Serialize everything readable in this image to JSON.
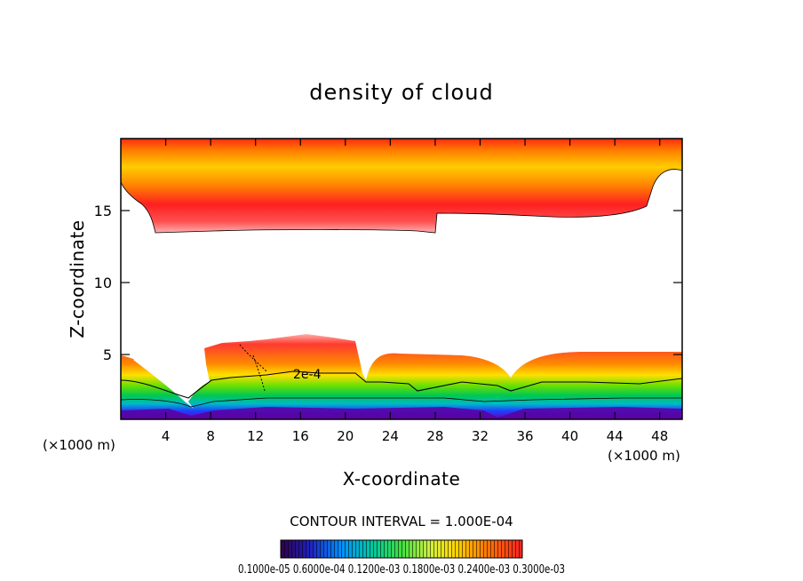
{
  "chart_data": {
    "type": "heatmap",
    "title": "density of cloud",
    "xlabel": "X-coordinate",
    "ylabel": "Z-coordinate",
    "x_unit": "(×1000 m)",
    "x_unit_right": "(×1000 m)",
    "xlim": [
      0,
      50
    ],
    "ylim": [
      0.5,
      20
    ],
    "x_ticks": [
      4,
      8,
      12,
      16,
      20,
      24,
      28,
      32,
      36,
      40,
      44,
      48
    ],
    "y_ticks": [
      5,
      10,
      15
    ],
    "contour_interval_label": "CONTOUR INTERVAL = 1.000E-04",
    "contour_label": "2e-4",
    "colorbar_labels": "0.1000e-05  0.6000e-04  0.1200e-03  0.1800e-03  0.2400e-03  0.3000e-03",
    "colors": {
      "low": "#3b0090",
      "mid": "#00cc40",
      "high": "#ff2020",
      "peak": "#ffd400"
    },
    "regions": [
      {
        "name": "upper-cloud-layer",
        "z_bottom": 13.5,
        "z_top": 20
      },
      {
        "name": "lower-cloud-layer",
        "z_bottom": 0.5,
        "z_top": 5.5
      }
    ]
  }
}
